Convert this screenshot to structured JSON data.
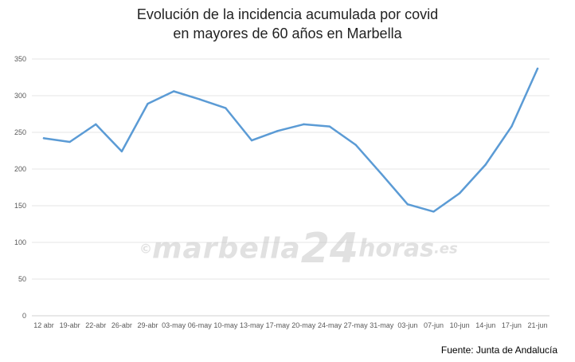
{
  "chart_data": {
    "type": "line",
    "title_line1": "Evolución de la incidencia acumulada por covid",
    "title_line2": "en mayores de 60 años en Marbella",
    "xlabel": "",
    "ylabel": "",
    "ylim": [
      0,
      350
    ],
    "yticks": [
      0,
      50,
      100,
      150,
      200,
      250,
      300,
      350
    ],
    "grid": true,
    "line_color": "#5b9bd5",
    "categories": [
      "12 abr",
      "19-abr",
      "22-abr",
      "26-abr",
      "29-abr",
      "03-may",
      "06-may",
      "10-may",
      "13-may",
      "17-may",
      "20-may",
      "24-may",
      "27-may",
      "31-may",
      "03-jun",
      "07-jun",
      "10-jun",
      "14-jun",
      "17-jun",
      "21-jun"
    ],
    "series": [
      {
        "values": [
          242,
          237,
          261,
          224,
          289,
          306,
          295,
          283,
          239,
          252,
          261,
          258,
          233,
          193,
          152,
          142,
          167,
          206,
          258,
          337
        ]
      }
    ]
  },
  "source": "Fuente: Junta de Andalucía",
  "watermark": {
    "copyright": "©",
    "part1": "marbella",
    "part2": "24",
    "part3": "horas",
    "part4": ".es"
  }
}
